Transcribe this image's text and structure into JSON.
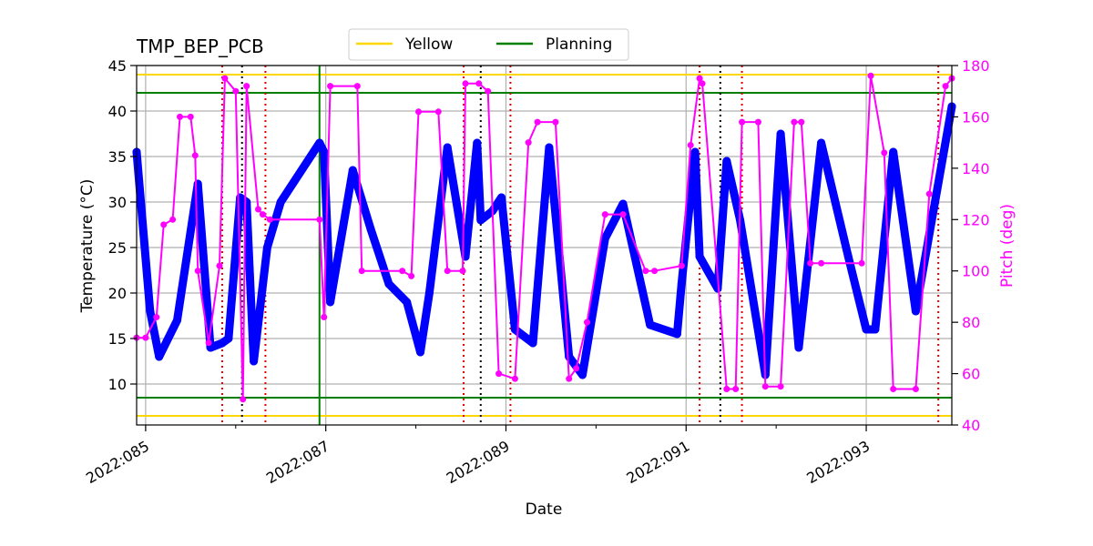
{
  "chart_data": {
    "type": "line",
    "title": "TMP_BEP_PCB",
    "xlabel": "Date",
    "ylabel": "Temperature ($^\\circ$C)",
    "ylabel_display": "Temperature (°C)",
    "y2label": "Pitch (deg)",
    "xlim": [
      84.9,
      93.95
    ],
    "ylim": [
      5.5,
      45
    ],
    "y2lim": [
      40,
      180
    ],
    "x_ticks": [
      {
        "value": 85,
        "label": "2022:085"
      },
      {
        "value": 87,
        "label": "2022:087"
      },
      {
        "value": 89,
        "label": "2022:089"
      },
      {
        "value": 91,
        "label": "2022:091"
      },
      {
        "value": 93,
        "label": "2022:093"
      }
    ],
    "x_minor_ticks": [
      86,
      88,
      90,
      92
    ],
    "y_ticks": [
      10,
      15,
      20,
      25,
      30,
      35,
      40,
      45
    ],
    "y2_ticks": [
      40,
      60,
      80,
      100,
      120,
      140,
      160,
      180
    ],
    "grid": true,
    "limit_lines": [
      {
        "name": "Yellow",
        "values": [
          6.5,
          44
        ],
        "color": "#ffd700"
      },
      {
        "name": "Planning",
        "values": [
          8.5,
          42
        ],
        "color": "#008000"
      }
    ],
    "legend": {
      "placement": "top-center",
      "entries": [
        "Yellow",
        "Planning"
      ]
    },
    "vlines": {
      "green": [
        86.93
      ],
      "black_dotted": [
        86.07,
        88.72,
        91.38
      ],
      "red_dotted": [
        85.85,
        86.33,
        88.53,
        89.05,
        91.15,
        91.62,
        93.8
      ]
    },
    "series": [
      {
        "name": "Temperature",
        "axis": "left",
        "color": "#0000ff",
        "x": [
          84.9,
          85.05,
          85.15,
          85.35,
          85.58,
          85.72,
          85.85,
          85.92,
          86.05,
          86.12,
          86.2,
          86.35,
          86.5,
          86.93,
          86.98,
          87.05,
          87.3,
          87.5,
          87.7,
          87.9,
          88.05,
          88.15,
          88.35,
          88.55,
          88.68,
          88.72,
          88.85,
          88.95,
          89.1,
          89.3,
          89.48,
          89.7,
          89.85,
          90.1,
          90.3,
          90.6,
          90.9,
          90.95,
          91.1,
          91.15,
          91.35,
          91.45,
          91.6,
          91.88,
          92.05,
          92.25,
          92.5,
          92.8,
          93.0,
          93.1,
          93.3,
          93.55,
          93.95
        ],
        "y": [
          35.5,
          18,
          13,
          17,
          32,
          14,
          14.5,
          15,
          30.5,
          30,
          12.5,
          25,
          30,
          36.5,
          35.5,
          19,
          33.5,
          27,
          21,
          19,
          13.5,
          20,
          36,
          24,
          36.5,
          28,
          29,
          30.5,
          16,
          14.5,
          36,
          13,
          11,
          26,
          29.8,
          16.5,
          15.5,
          21,
          35.5,
          24,
          20.5,
          34.5,
          28,
          11,
          37.5,
          14,
          36.5,
          24,
          16,
          16,
          35.5,
          18,
          40.5
        ]
      },
      {
        "name": "Pitch",
        "axis": "right",
        "color": "#ff00ff",
        "x": [
          84.9,
          85.0,
          85.12,
          85.2,
          85.3,
          85.38,
          85.5,
          85.55,
          85.58,
          85.7,
          85.82,
          85.88,
          86.0,
          86.08,
          86.12,
          86.25,
          86.3,
          86.38,
          86.93,
          86.98,
          87.05,
          87.35,
          87.4,
          87.85,
          87.95,
          88.03,
          88.25,
          88.35,
          88.52,
          88.55,
          88.7,
          88.8,
          88.92,
          89.1,
          89.25,
          89.35,
          89.55,
          89.7,
          89.78,
          89.9,
          90.1,
          90.3,
          90.55,
          90.65,
          90.95,
          91.05,
          91.15,
          91.18,
          91.45,
          91.55,
          91.62,
          91.8,
          91.88,
          92.05,
          92.2,
          92.28,
          92.38,
          92.5,
          92.95,
          93.05,
          93.2,
          93.3,
          93.55,
          93.7,
          93.88,
          93.95
        ],
        "y": [
          74,
          74,
          82,
          118,
          120,
          160,
          160,
          145,
          100,
          72,
          102,
          175,
          170,
          50,
          172,
          124,
          122,
          120,
          120,
          82,
          172,
          172,
          100,
          100,
          98,
          162,
          162,
          100,
          100,
          173,
          173,
          170,
          60,
          58,
          150,
          158,
          158,
          58,
          62,
          80,
          122,
          122,
          100,
          100,
          102,
          149,
          175,
          173,
          54,
          54,
          158,
          158,
          55,
          55,
          158,
          158,
          103,
          103,
          103,
          176,
          146,
          54,
          54,
          130,
          172,
          175
        ]
      }
    ]
  }
}
